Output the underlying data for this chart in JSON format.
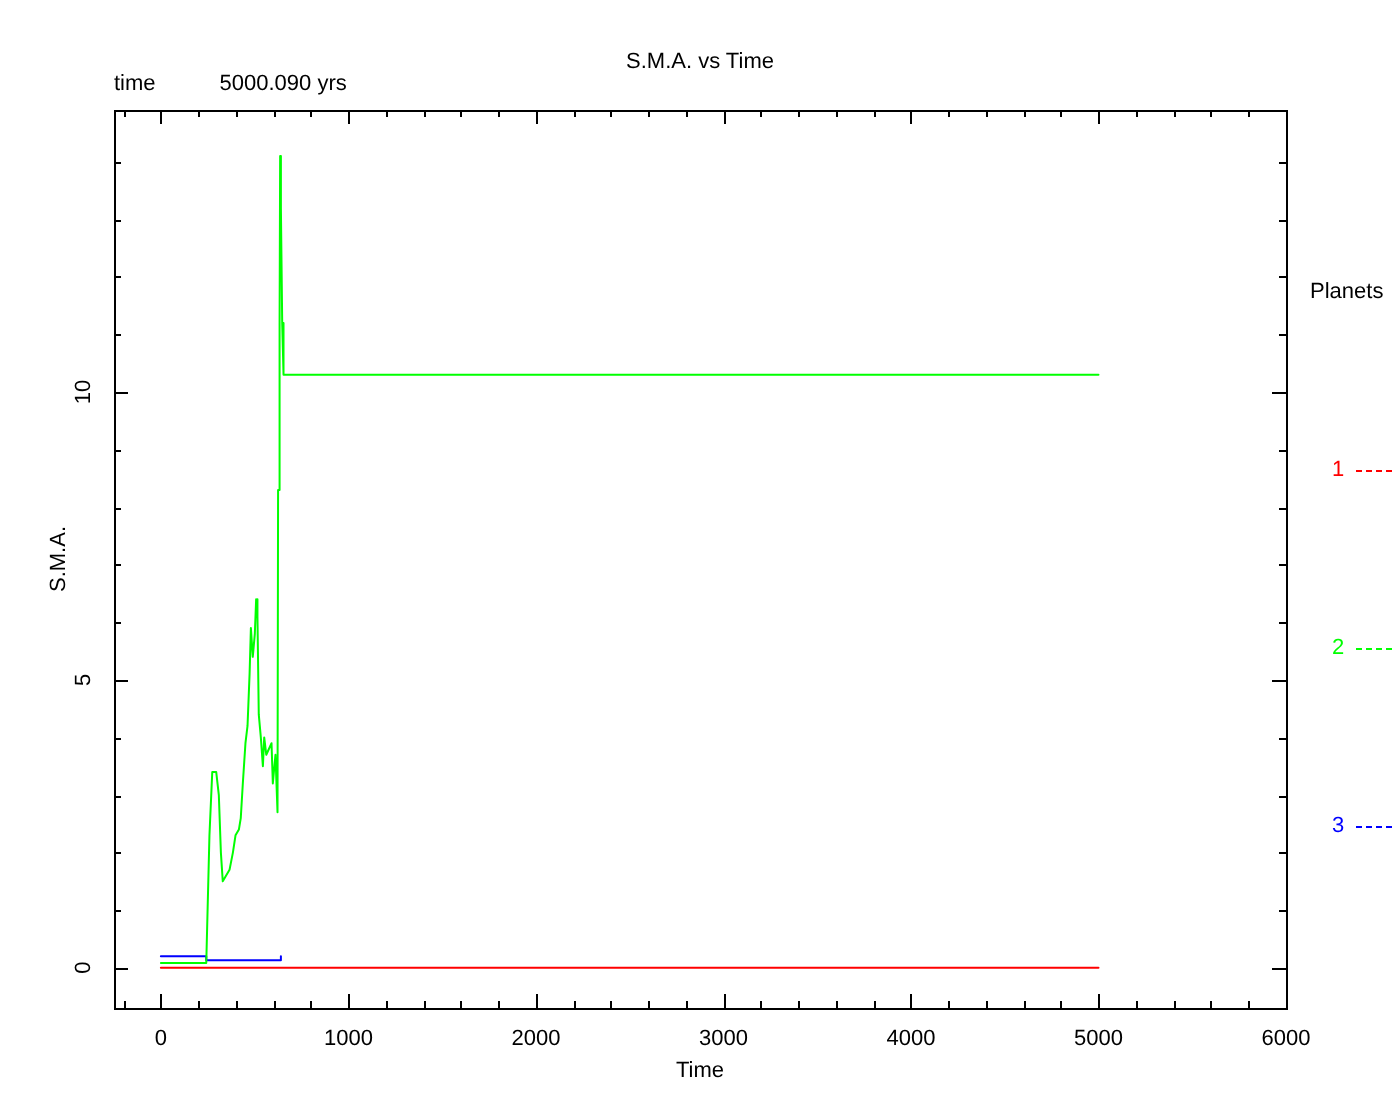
{
  "chart_data": {
    "type": "line",
    "title": "S.M.A. vs Time",
    "xlabel": "Time",
    "ylabel": "S.M.A.",
    "legend_title": "Planets",
    "annotations": [
      "time",
      "5000.090 yrs"
    ],
    "xlim": [
      -250,
      6000
    ],
    "xticks": [
      {
        "value": -200,
        "label": null
      },
      0,
      {
        "value": 200,
        "label": null
      },
      {
        "value": 400,
        "label": null
      },
      {
        "value": 600,
        "label": null
      },
      {
        "value": 800,
        "label": null
      },
      1000,
      {
        "value": 1200,
        "label": null
      },
      {
        "value": 1400,
        "label": null
      },
      {
        "value": 1600,
        "label": null
      },
      {
        "value": 1800,
        "label": null
      },
      2000,
      {
        "value": 2200,
        "label": null
      },
      {
        "value": 2400,
        "label": null
      },
      {
        "value": 2600,
        "label": null
      },
      {
        "value": 2800,
        "label": null
      },
      3000,
      {
        "value": 3200,
        "label": null
      },
      {
        "value": 3400,
        "label": null
      },
      {
        "value": 3600,
        "label": null
      },
      {
        "value": 3800,
        "label": null
      },
      4000,
      {
        "value": 4200,
        "label": null
      },
      {
        "value": 4400,
        "label": null
      },
      {
        "value": 4600,
        "label": null
      },
      {
        "value": 4800,
        "label": null
      },
      5000,
      {
        "value": 5200,
        "label": null
      },
      {
        "value": 5400,
        "label": null
      },
      {
        "value": 5600,
        "label": null
      },
      {
        "value": 5800,
        "label": null
      },
      6000
    ],
    "ylim": [
      -0.7,
      14.9
    ],
    "yticks": [
      0,
      {
        "value": 1,
        "label": null
      },
      {
        "value": 2,
        "label": null
      },
      {
        "value": 3,
        "label": null
      },
      {
        "value": 4,
        "label": null
      },
      5,
      {
        "value": 6,
        "label": null
      },
      {
        "value": 7,
        "label": null
      },
      {
        "value": 8,
        "label": null
      },
      {
        "value": 9,
        "label": null
      },
      10,
      {
        "value": 11,
        "label": null
      },
      {
        "value": 12,
        "label": null
      },
      {
        "value": 13,
        "label": null
      },
      {
        "value": 14,
        "label": null
      }
    ],
    "grid": false,
    "legend": "right",
    "marker": "none",
    "line_style": "solid",
    "series": [
      {
        "name": "1",
        "color": "#ff0000",
        "x": [
          0,
          5000
        ],
        "values": [
          0,
          0
        ]
      },
      {
        "name": "2",
        "color": "#00ff00",
        "x": [
          0,
          242,
          259,
          274,
          295,
          309,
          320,
          330,
          348,
          366,
          384,
          398,
          416,
          426,
          437,
          451,
          462,
          473,
          480,
          490,
          501,
          508,
          515,
          522,
          533,
          544,
          551,
          562,
          576,
          590,
          597,
          611,
          622,
          625,
          633,
          636,
          640,
          647,
          654,
          5000
        ],
        "values": [
          0.08,
          0.08,
          2.3,
          3.4,
          3.4,
          3.0,
          2.0,
          1.5,
          1.6,
          1.7,
          2.0,
          2.3,
          2.4,
          2.6,
          3.2,
          3.9,
          4.2,
          5.1,
          5.9,
          5.4,
          5.8,
          6.4,
          6.1,
          4.4,
          4.0,
          3.5,
          4.0,
          3.7,
          3.8,
          3.9,
          3.2,
          3.7,
          2.7,
          8.3,
          11.2,
          14.1,
          13.2,
          11.2,
          10.3,
          10.3
        ]
      },
      {
        "name": "3",
        "color": "#0000ff",
        "x": [
          0,
          242,
          242,
          640,
          640
        ],
        "values": [
          0.2,
          0.2,
          0.13,
          0.13,
          0.2
        ]
      }
    ]
  }
}
